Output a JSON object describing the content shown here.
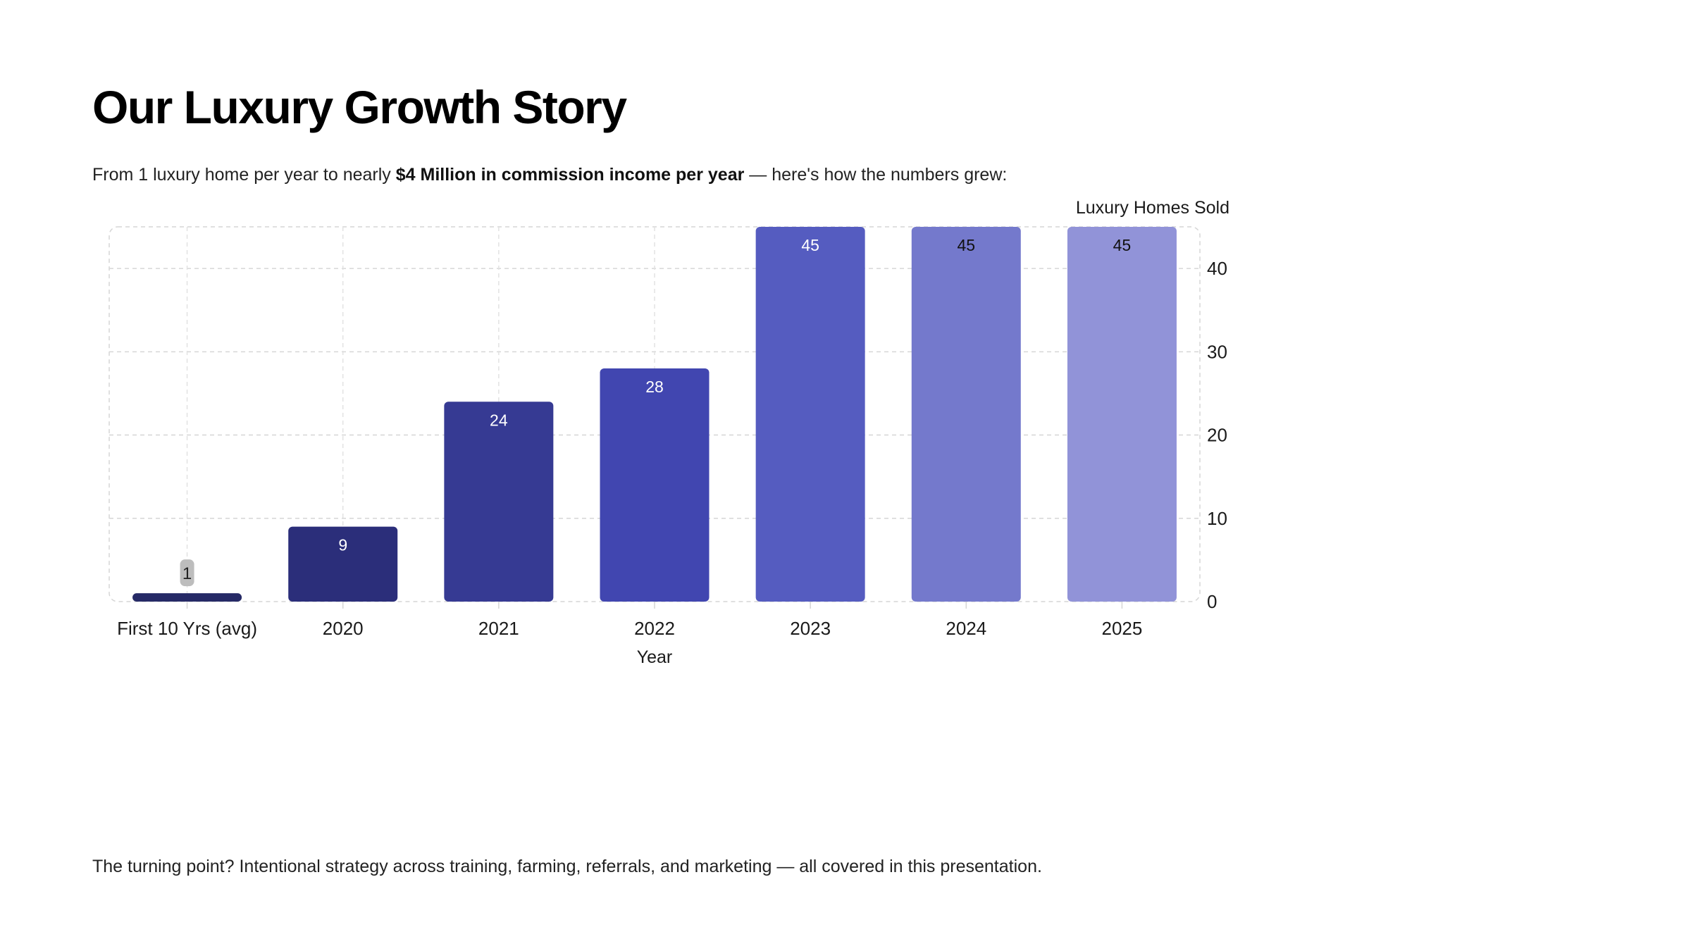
{
  "title": "Our Luxury Growth Story",
  "subtitle": {
    "before": "From 1 luxury home per year to nearly ",
    "emphasis": "$4 Million in commission income per year",
    "after": " — here's how the numbers grew:"
  },
  "footer": "The turning point? Intentional strategy across training, farming, referrals, and marketing — all covered in this presentation.",
  "chart_data": {
    "type": "bar",
    "categories": [
      "First 10 Yrs (avg)",
      "2020",
      "2021",
      "2022",
      "2023",
      "2024",
      "2025"
    ],
    "values": [
      1,
      9,
      24,
      28,
      45,
      45,
      45
    ],
    "data_labels": [
      "1",
      "9",
      "24",
      "28",
      "45",
      "45",
      "45"
    ],
    "colors": [
      "#262a66",
      "#2b2e7a",
      "#363a93",
      "#4146b0",
      "#555cc0",
      "#7479cc",
      "#9193d8"
    ],
    "label_colors": [
      "#222222",
      "#ffffff",
      "#ffffff",
      "#ffffff",
      "#ffffff",
      "#111111",
      "#111111"
    ],
    "xlabel": "Year",
    "ylabel": "Luxury Homes Sold",
    "ylim": [
      0,
      45
    ],
    "yticks": [
      0,
      10,
      20,
      30,
      40
    ],
    "y_axis_side": "right",
    "grid": true
  }
}
